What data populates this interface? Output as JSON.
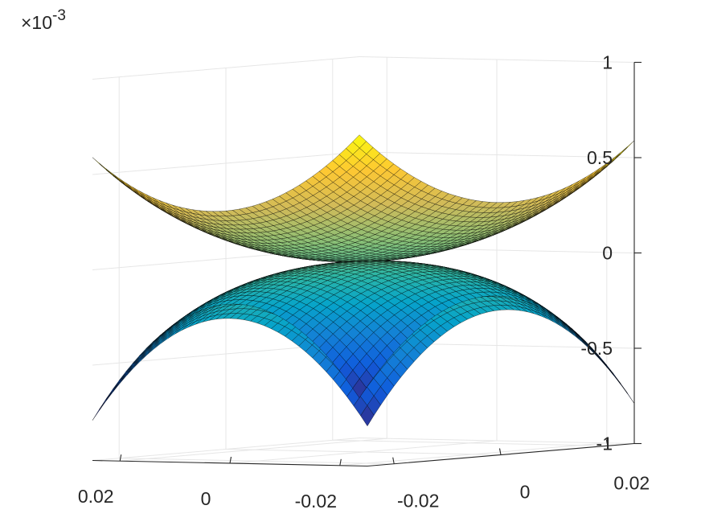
{
  "chart_data": {
    "type": "surface3d",
    "title": "",
    "xlabel": "",
    "ylabel": "",
    "zlabel": "",
    "z_exponent": {
      "prefix": "×10",
      "power": "-3"
    },
    "xlim": [
      -0.025,
      0.025
    ],
    "ylim": [
      -0.025,
      0.025
    ],
    "zlim": [
      -0.001,
      0.001
    ],
    "x_ticks": [
      -0.02,
      0,
      0.02
    ],
    "y_ticks": [
      -0.02,
      0,
      0.02
    ],
    "z_ticks": [
      -1,
      -0.5,
      0,
      0.5,
      1
    ],
    "x_tick_labels": [
      "-0.02",
      "0",
      "0.02"
    ],
    "y_tick_labels": [
      "-0.02",
      "0",
      "0.02"
    ],
    "z_tick_labels": [
      "-1",
      "-0.5",
      "0",
      "0.5",
      "1"
    ],
    "grid": true,
    "colormap": "parula",
    "mesh_resolution": 40,
    "surfaces": [
      {
        "function": "+0.8*max(|x|,|y|)^2 scaled",
        "z_corner": 0.00059,
        "z_edge_mid": 0.00025,
        "z_center": 0
      },
      {
        "function": "-0.8*max(|x|,|y|)^2 scaled",
        "z_corner": -0.00079,
        "z_edge_mid": -0.00024,
        "z_center": 0
      }
    ]
  },
  "colors": {
    "axis": "#262626",
    "grid": "#e6e6e6",
    "mesh_edge": "#000000",
    "parula": [
      "#352a87",
      "#0f5cdd",
      "#1481d6",
      "#06a4ca",
      "#2eb7a4",
      "#87bf77",
      "#d1bb59",
      "#fec832",
      "#f9fb0e"
    ]
  }
}
